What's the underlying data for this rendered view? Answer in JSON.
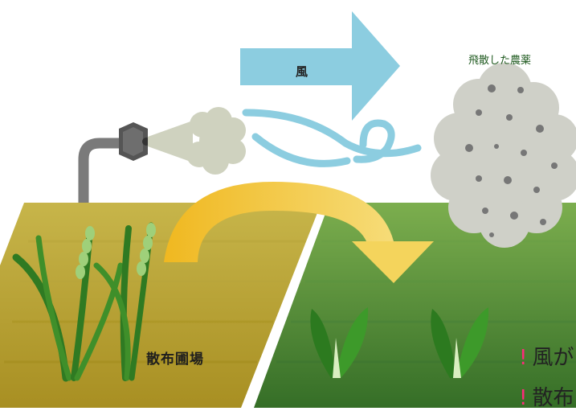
{
  "labels": {
    "drifted_pesticide": "飛散した農薬",
    "wind": "風",
    "sprayed_field": "散布圃場"
  },
  "notes": [
    {
      "bullet": "!",
      "text": "風が"
    },
    {
      "bullet": "!",
      "text": "散布"
    }
  ],
  "colors": {
    "wind_arrow": "#8ccde0",
    "spray_field": "#b8a43a",
    "neighbor_field": "#5e9a3a",
    "drift_arrow": "#f2c13a",
    "pesticide_cloud": "#cfd0c8",
    "note_bullet": "#ff2a7a"
  }
}
